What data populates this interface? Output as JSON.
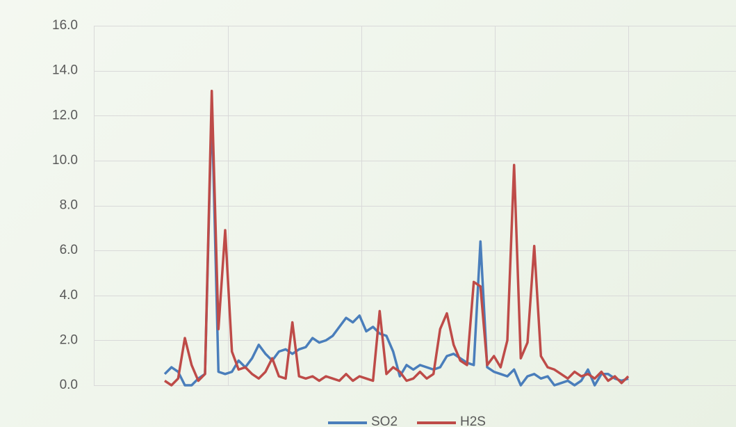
{
  "chart_data": {
    "type": "line",
    "ylim": [
      0,
      16
    ],
    "yticks": [
      {
        "value": 0,
        "label": "0.0"
      },
      {
        "value": 2,
        "label": "2.0"
      },
      {
        "value": 4,
        "label": "4.0"
      },
      {
        "value": 6,
        "label": "6.0"
      },
      {
        "value": 8,
        "label": "8.0"
      },
      {
        "value": 10,
        "label": "10.0"
      },
      {
        "value": 12,
        "label": "12.0"
      },
      {
        "value": 14,
        "label": "14.0"
      },
      {
        "value": 16,
        "label": "16.0"
      }
    ],
    "grid": true,
    "legend": "bottom",
    "series": [
      {
        "name": "SO2",
        "color": "#4a7ebb",
        "values": [
          0.5,
          0.8,
          0.6,
          0.0,
          0.0,
          0.3,
          0.5,
          12.5,
          0.6,
          0.5,
          0.6,
          1.1,
          0.8,
          1.2,
          1.8,
          1.4,
          1.1,
          1.5,
          1.6,
          1.4,
          1.6,
          1.7,
          2.1,
          1.9,
          2.0,
          2.2,
          2.6,
          3.0,
          2.8,
          3.1,
          2.4,
          2.6,
          2.3,
          2.2,
          1.5,
          0.4,
          0.9,
          0.7,
          0.9,
          0.8,
          0.7,
          0.8,
          1.3,
          1.4,
          1.2,
          1.0,
          0.9,
          6.4,
          0.8,
          0.6,
          0.5,
          0.4,
          0.7,
          0.0,
          0.4,
          0.5,
          0.3,
          0.4,
          0.0,
          0.1,
          0.2,
          0.0,
          0.2,
          0.7,
          0.0,
          0.5,
          0.5,
          0.3,
          0.2,
          0.3
        ]
      },
      {
        "name": "H2S",
        "color": "#be4b48",
        "values": [
          0.2,
          0.0,
          0.3,
          2.1,
          0.9,
          0.2,
          0.5,
          13.1,
          2.5,
          6.9,
          1.5,
          0.7,
          0.8,
          0.5,
          0.3,
          0.6,
          1.2,
          0.4,
          0.3,
          2.8,
          0.4,
          0.3,
          0.4,
          0.2,
          0.4,
          0.3,
          0.2,
          0.5,
          0.2,
          0.4,
          0.3,
          0.2,
          3.3,
          0.5,
          0.8,
          0.6,
          0.2,
          0.3,
          0.6,
          0.3,
          0.5,
          2.5,
          3.2,
          1.8,
          1.1,
          0.9,
          4.6,
          4.4,
          0.9,
          1.3,
          0.8,
          2.0,
          9.8,
          1.2,
          1.9,
          6.2,
          1.3,
          0.8,
          0.7,
          0.5,
          0.3,
          0.6,
          0.4,
          0.5,
          0.3,
          0.6,
          0.2,
          0.4,
          0.1,
          0.4
        ]
      }
    ]
  }
}
